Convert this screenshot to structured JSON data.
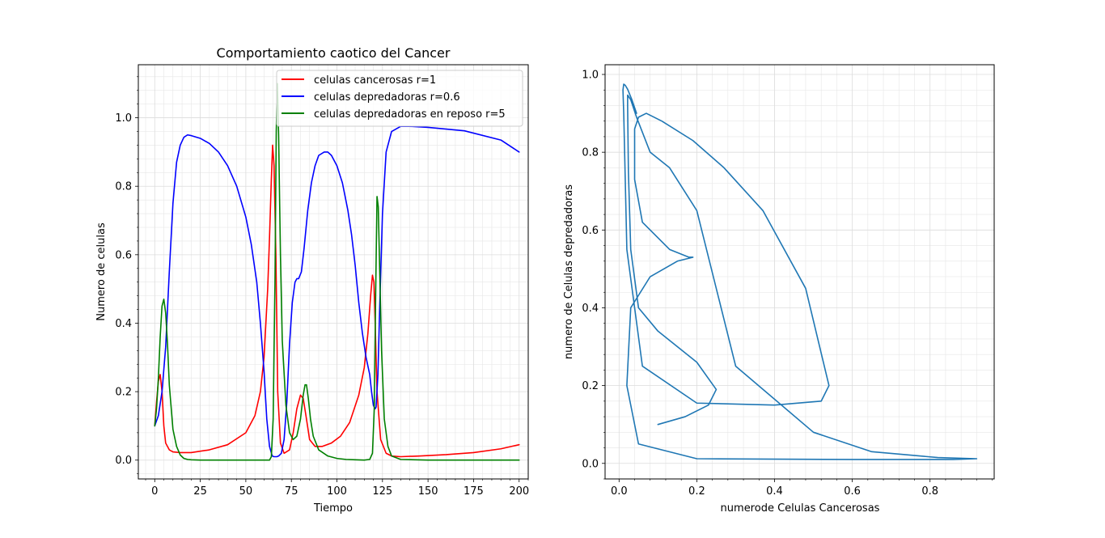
{
  "figure_background": "#ffffff",
  "chart_data": [
    {
      "type": "line",
      "title": "Comportamiento caotico del Cancer",
      "xlabel": "Tiempo",
      "ylabel": "Numero de celulas",
      "xlim": [
        -9,
        205
      ],
      "ylim": [
        -0.055,
        1.155
      ],
      "xticks": [
        0,
        25,
        50,
        75,
        100,
        125,
        150,
        175,
        200
      ],
      "xtick_labels": [
        "0",
        "25",
        "50",
        "75",
        "100",
        "125",
        "150",
        "175",
        "200"
      ],
      "yticks": [
        0.0,
        0.2,
        0.4,
        0.6,
        0.8,
        1.0
      ],
      "ytick_labels": [
        "0.0",
        "0.2",
        "0.4",
        "0.6",
        "0.8",
        "1.0"
      ],
      "grid": true,
      "legend_position": "top-right",
      "series": [
        {
          "name": "celulas cancerosas r=1",
          "color": "#ff0000",
          "x": [
            0,
            1,
            2,
            3,
            4,
            5,
            6,
            8,
            10,
            14,
            20,
            30,
            40,
            50,
            55,
            58,
            60,
            62,
            63,
            64,
            64.7,
            65.5,
            66.5,
            67.5,
            69,
            71,
            74,
            76,
            78,
            80,
            81.5,
            83,
            85,
            88,
            92,
            97,
            102,
            107,
            112,
            115,
            117,
            118.5,
            119.5,
            120.3,
            121,
            122,
            124,
            127,
            130,
            135,
            145,
            160,
            175,
            190,
            200
          ],
          "y": [
            0.1,
            0.17,
            0.23,
            0.25,
            0.2,
            0.1,
            0.05,
            0.03,
            0.024,
            0.022,
            0.022,
            0.03,
            0.045,
            0.08,
            0.13,
            0.2,
            0.3,
            0.5,
            0.65,
            0.82,
            0.92,
            0.86,
            0.6,
            0.2,
            0.05,
            0.02,
            0.03,
            0.08,
            0.15,
            0.19,
            0.18,
            0.13,
            0.06,
            0.04,
            0.04,
            0.05,
            0.07,
            0.11,
            0.19,
            0.27,
            0.37,
            0.48,
            0.54,
            0.52,
            0.4,
            0.2,
            0.06,
            0.02,
            0.012,
            0.01,
            0.012,
            0.016,
            0.022,
            0.033,
            0.045
          ]
        },
        {
          "name": "celulas depredadoras r=0.6",
          "color": "#0000ff",
          "x": [
            0,
            2,
            4,
            6,
            8,
            10,
            12,
            14,
            16,
            18,
            20,
            25,
            30,
            35,
            40,
            45,
            50,
            53,
            56,
            58,
            60,
            61.5,
            63,
            64.5,
            65.5,
            67,
            68,
            69.5,
            71,
            72.5,
            74,
            75.5,
            77,
            78,
            79,
            80.5,
            82,
            84,
            86,
            88,
            90,
            93,
            95,
            97,
            100,
            103,
            106,
            108,
            110,
            112,
            114,
            116,
            118,
            119,
            120,
            121,
            121.5,
            122.5,
            123.5,
            125,
            127,
            130,
            135,
            140,
            150,
            170,
            190,
            200
          ],
          "y": [
            0.1,
            0.13,
            0.2,
            0.33,
            0.55,
            0.75,
            0.87,
            0.92,
            0.943,
            0.95,
            0.948,
            0.94,
            0.925,
            0.9,
            0.86,
            0.8,
            0.71,
            0.63,
            0.52,
            0.4,
            0.26,
            0.12,
            0.04,
            0.012,
            0.01,
            0.01,
            0.012,
            0.02,
            0.06,
            0.17,
            0.34,
            0.46,
            0.52,
            0.53,
            0.53,
            0.55,
            0.62,
            0.73,
            0.81,
            0.86,
            0.89,
            0.9,
            0.9,
            0.89,
            0.86,
            0.81,
            0.73,
            0.66,
            0.57,
            0.46,
            0.37,
            0.3,
            0.25,
            0.2,
            0.16,
            0.15,
            0.155,
            0.25,
            0.45,
            0.72,
            0.9,
            0.96,
            0.975,
            0.975,
            0.972,
            0.962,
            0.935,
            0.9
          ]
        },
        {
          "name": "celulas depredadoras en reposo r=5",
          "color": "#008000",
          "x": [
            0,
            1,
            2,
            3,
            4,
            5,
            6,
            7,
            8,
            10,
            12,
            14,
            16,
            18,
            20,
            25,
            40,
            60,
            63,
            64,
            65,
            66,
            66.7,
            67.3,
            68,
            69,
            70,
            72,
            74,
            76,
            78,
            80,
            81.5,
            82.5,
            83.3,
            84.3,
            85.5,
            87,
            90,
            95,
            100,
            105,
            110,
            115,
            118,
            119.5,
            120.5,
            121.3,
            122,
            122.7,
            123.5,
            124.5,
            126,
            128,
            130,
            135,
            150,
            200
          ],
          "y": [
            0.1,
            0.15,
            0.24,
            0.36,
            0.45,
            0.47,
            0.43,
            0.34,
            0.22,
            0.09,
            0.04,
            0.015,
            0.005,
            0.002,
            0.001,
            0.0,
            0.0,
            0.0,
            0.0,
            0.01,
            0.12,
            0.52,
            0.96,
            1.1,
            0.95,
            0.6,
            0.35,
            0.16,
            0.08,
            0.06,
            0.07,
            0.12,
            0.19,
            0.22,
            0.22,
            0.18,
            0.12,
            0.07,
            0.03,
            0.012,
            0.005,
            0.002,
            0.001,
            0.0,
            0.002,
            0.02,
            0.15,
            0.5,
            0.77,
            0.74,
            0.55,
            0.32,
            0.12,
            0.04,
            0.012,
            0.002,
            0.0,
            0.0
          ]
        }
      ]
    },
    {
      "type": "line",
      "title": "",
      "xlabel": "numerode Celulas Cancerosas",
      "ylabel": "numero de Celulas depredadoras",
      "xlim": [
        -0.036,
        0.965
      ],
      "ylim": [
        -0.04,
        1.025
      ],
      "xticks": [
        0.0,
        0.2,
        0.4,
        0.6,
        0.8
      ],
      "xtick_labels": [
        "0.0",
        "0.2",
        "0.4",
        "0.6",
        "0.8"
      ],
      "yticks": [
        0.0,
        0.2,
        0.4,
        0.6,
        0.8,
        1.0
      ],
      "ytick_labels": [
        "0.0",
        "0.2",
        "0.4",
        "0.6",
        "0.8",
        "1.0"
      ],
      "grid": true,
      "series": [
        {
          "color": "#1f77b4",
          "x": [
            0.1,
            0.17,
            0.23,
            0.25,
            0.2,
            0.1,
            0.05,
            0.03,
            0.024,
            0.022,
            0.022,
            0.03,
            0.045,
            0.08,
            0.13,
            0.2,
            0.3,
            0.5,
            0.65,
            0.82,
            0.92,
            0.86,
            0.6,
            0.2,
            0.05,
            0.02,
            0.03,
            0.08,
            0.15,
            0.19,
            0.18,
            0.13,
            0.06,
            0.04,
            0.04,
            0.05,
            0.07,
            0.11,
            0.19,
            0.27,
            0.37,
            0.48,
            0.54,
            0.52,
            0.4,
            0.2,
            0.06,
            0.02,
            0.012,
            0.01,
            0.012,
            0.016,
            0.022,
            0.033,
            0.045
          ],
          "y": [
            0.1,
            0.12,
            0.15,
            0.19,
            0.26,
            0.34,
            0.4,
            0.55,
            0.75,
            0.92,
            0.947,
            0.935,
            0.89,
            0.8,
            0.76,
            0.65,
            0.25,
            0.08,
            0.03,
            0.015,
            0.012,
            0.01,
            0.01,
            0.012,
            0.05,
            0.2,
            0.4,
            0.48,
            0.52,
            0.53,
            0.53,
            0.55,
            0.62,
            0.73,
            0.86,
            0.89,
            0.9,
            0.88,
            0.83,
            0.76,
            0.65,
            0.45,
            0.2,
            0.16,
            0.15,
            0.155,
            0.25,
            0.55,
            0.9,
            0.96,
            0.975,
            0.972,
            0.962,
            0.935,
            0.9
          ]
        }
      ]
    }
  ]
}
